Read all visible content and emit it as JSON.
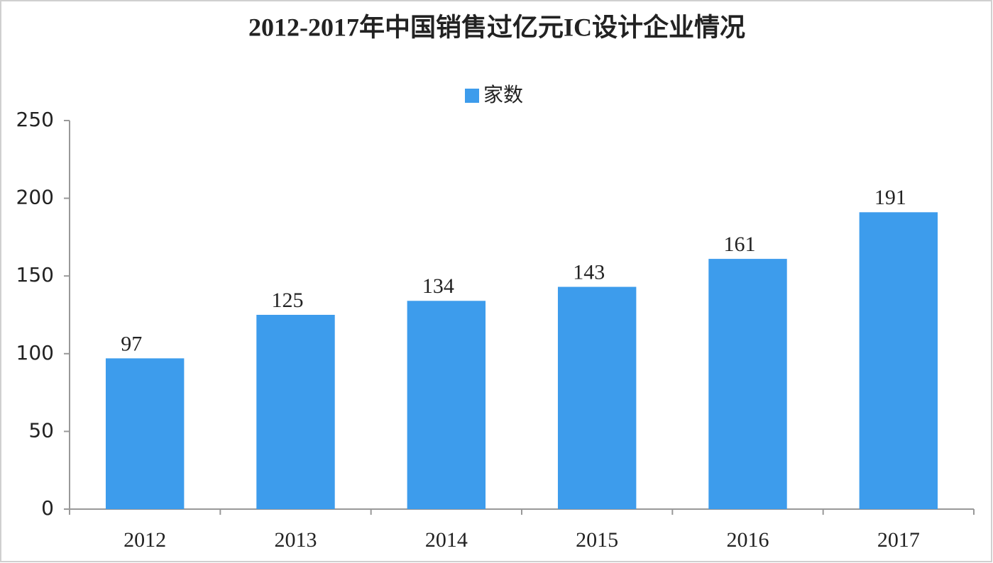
{
  "chart_data": {
    "type": "bar",
    "title": "2012-2017年中国销售过亿元IC设计企业情况",
    "categories": [
      "2012",
      "2013",
      "2014",
      "2015",
      "2016",
      "2017"
    ],
    "series": [
      {
        "name": "家数",
        "color": "#3d9cec",
        "values": [
          97,
          125,
          134,
          143,
          161,
          191
        ]
      }
    ],
    "ylim": [
      0,
      250
    ],
    "yticks": [
      0,
      50,
      100,
      150,
      200,
      250
    ],
    "grid": false,
    "legend": "top"
  }
}
